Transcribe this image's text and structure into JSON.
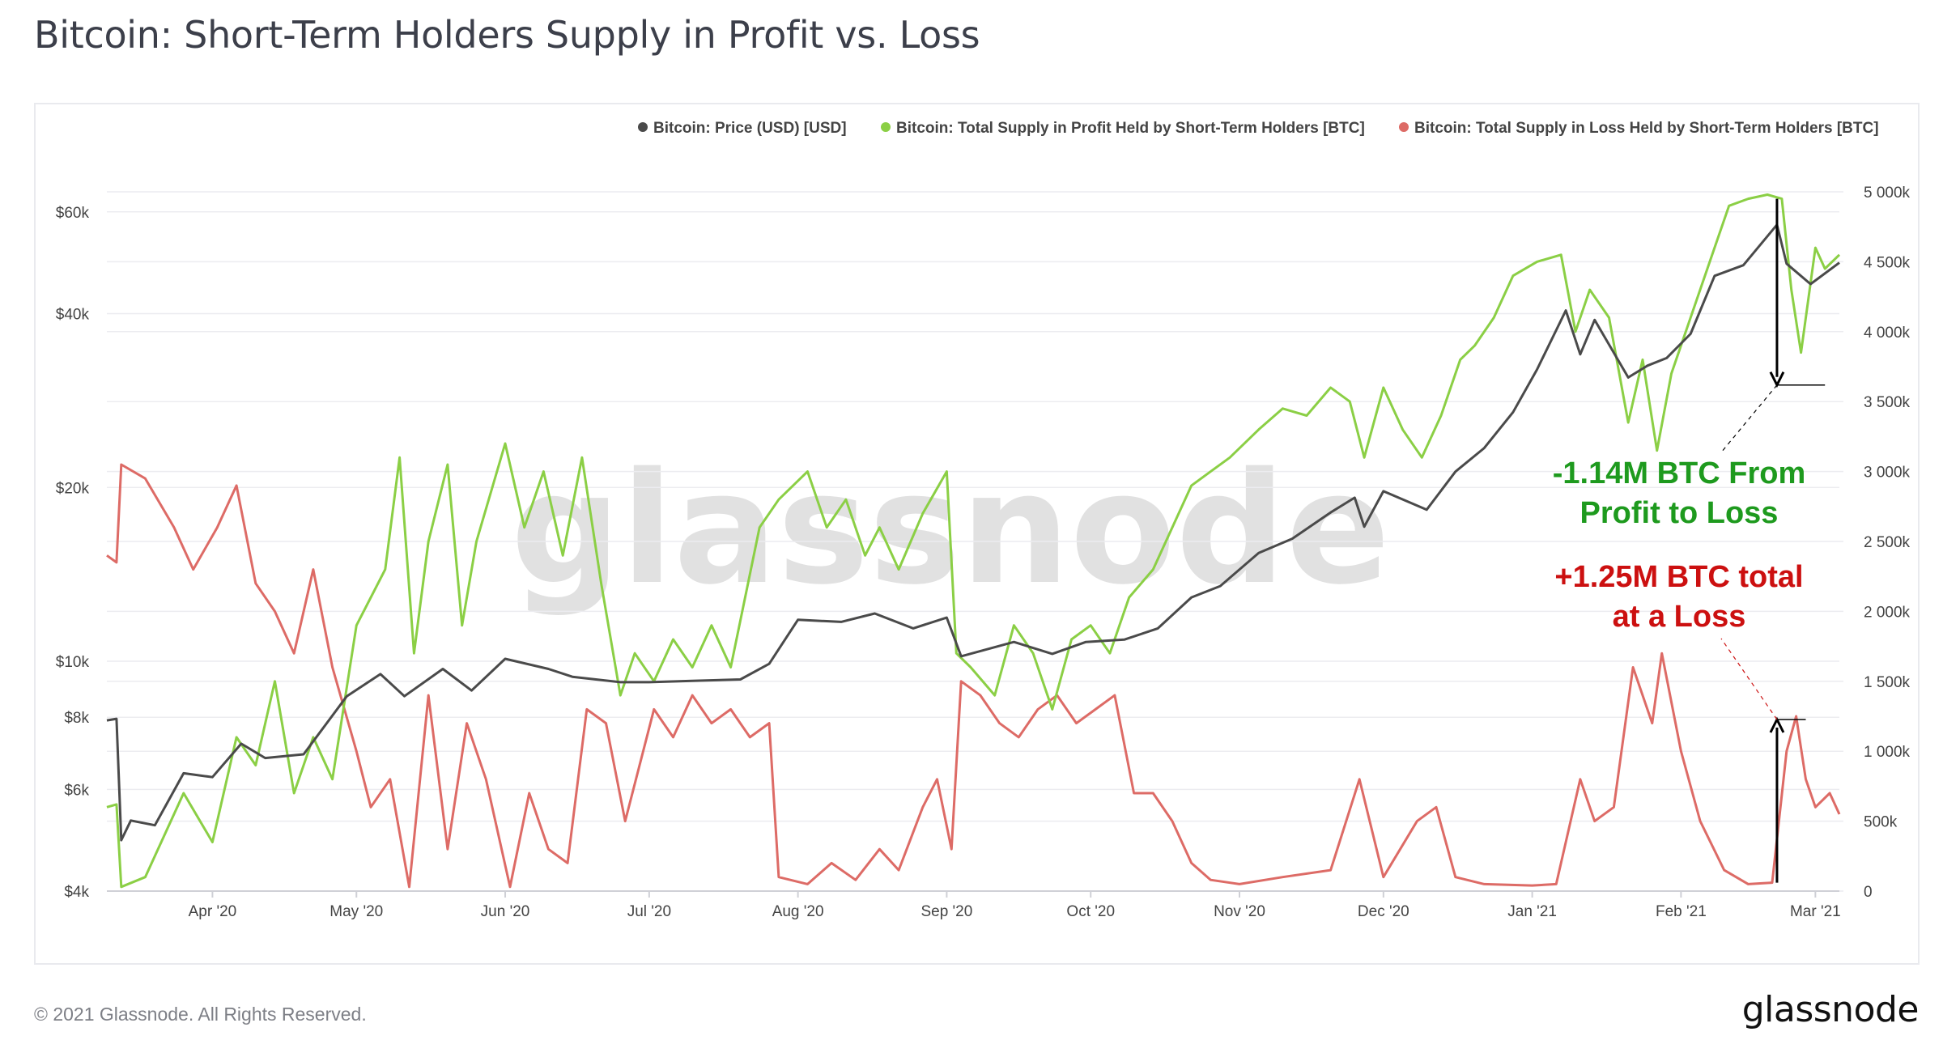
{
  "title": "Bitcoin: Short-Term Holders Supply in Profit vs. Loss",
  "footer": "© 2021 Glassnode. All Rights Reserved.",
  "brand": "glassnode",
  "watermark": "glassnode",
  "colors": {
    "price": "#4a4a4a",
    "profit": "#8bcf45",
    "loss": "#dd6b66",
    "annotation_green": "#1e9a1e",
    "annotation_red": "#cc1010",
    "grid": "#ececf0"
  },
  "chart_data": {
    "type": "line",
    "title": "Bitcoin: Short-Term Holders Supply in Profit vs. Loss",
    "x_ticks": [
      "Apr '20",
      "May '20",
      "Jun '20",
      "Jul '20",
      "Aug '20",
      "Sep '20",
      "Oct '20",
      "Nov '20",
      "Dec '20",
      "Jan '21",
      "Feb '21",
      "Mar '21"
    ],
    "x_range": [
      "2020-03-10",
      "2021-03-06"
    ],
    "y_left": {
      "scale": "log",
      "ticks": [
        "$4k",
        "$6k",
        "$8k",
        "$10k",
        "$20k",
        "$40k",
        "$60k"
      ],
      "tick_values": [
        4000,
        6000,
        8000,
        10000,
        20000,
        40000,
        60000
      ],
      "range": [
        4000,
        65000
      ]
    },
    "y_right": {
      "scale": "linear",
      "ticks": [
        "0",
        "500k",
        "1 000k",
        "1 500k",
        "2 000k",
        "2 500k",
        "3 000k",
        "3 500k",
        "4 000k",
        "4 500k",
        "5 000k"
      ],
      "range": [
        0,
        5000000
      ]
    },
    "legend_position": "top-right",
    "series": [
      {
        "name": "Bitcoin: Price (USD) [USD]",
        "axis": "left",
        "color": "#4a4a4a",
        "points": [
          [
            "2020-03-10",
            7900
          ],
          [
            "2020-03-12",
            7950
          ],
          [
            "2020-03-13",
            4900
          ],
          [
            "2020-03-15",
            5300
          ],
          [
            "2020-03-20",
            5200
          ],
          [
            "2020-03-26",
            6400
          ],
          [
            "2020-04-01",
            6300
          ],
          [
            "2020-04-07",
            7200
          ],
          [
            "2020-04-12",
            6800
          ],
          [
            "2020-04-20",
            6900
          ],
          [
            "2020-04-29",
            8700
          ],
          [
            "2020-05-06",
            9500
          ],
          [
            "2020-05-11",
            8700
          ],
          [
            "2020-05-19",
            9700
          ],
          [
            "2020-05-25",
            8900
          ],
          [
            "2020-06-01",
            10100
          ],
          [
            "2020-06-10",
            9700
          ],
          [
            "2020-06-15",
            9400
          ],
          [
            "2020-06-25",
            9200
          ],
          [
            "2020-07-01",
            9200
          ],
          [
            "2020-07-10",
            9250
          ],
          [
            "2020-07-20",
            9300
          ],
          [
            "2020-07-26",
            9900
          ],
          [
            "2020-08-01",
            11800
          ],
          [
            "2020-08-10",
            11700
          ],
          [
            "2020-08-17",
            12100
          ],
          [
            "2020-08-25",
            11400
          ],
          [
            "2020-09-01",
            11900
          ],
          [
            "2020-09-04",
            10200
          ],
          [
            "2020-09-15",
            10800
          ],
          [
            "2020-09-23",
            10300
          ],
          [
            "2020-09-30",
            10800
          ],
          [
            "2020-10-08",
            10900
          ],
          [
            "2020-10-15",
            11400
          ],
          [
            "2020-10-22",
            12900
          ],
          [
            "2020-10-28",
            13500
          ],
          [
            "2020-11-05",
            15400
          ],
          [
            "2020-11-12",
            16300
          ],
          [
            "2020-11-20",
            18100
          ],
          [
            "2020-11-25",
            19200
          ],
          [
            "2020-11-27",
            17100
          ],
          [
            "2020-12-01",
            19700
          ],
          [
            "2020-12-10",
            18300
          ],
          [
            "2020-12-16",
            21300
          ],
          [
            "2020-12-22",
            23400
          ],
          [
            "2020-12-28",
            27000
          ],
          [
            "2021-01-02",
            32000
          ],
          [
            "2021-01-08",
            40500
          ],
          [
            "2021-01-11",
            34000
          ],
          [
            "2021-01-14",
            39000
          ],
          [
            "2021-01-21",
            31000
          ],
          [
            "2021-01-25",
            32500
          ],
          [
            "2021-01-29",
            33500
          ],
          [
            "2021-02-03",
            36900
          ],
          [
            "2021-02-08",
            46500
          ],
          [
            "2021-02-14",
            48500
          ],
          [
            "2021-02-21",
            57000
          ],
          [
            "2021-02-23",
            48800
          ],
          [
            "2021-02-28",
            45000
          ],
          [
            "2021-03-06",
            49000
          ]
        ]
      },
      {
        "name": "Bitcoin: Total Supply in Profit Held by Short-Term Holders [BTC]",
        "axis": "right",
        "color": "#8bcf45",
        "points": [
          [
            "2020-03-10",
            600000
          ],
          [
            "2020-03-12",
            620000
          ],
          [
            "2020-03-13",
            30000
          ],
          [
            "2020-03-18",
            100000
          ],
          [
            "2020-03-22",
            400000
          ],
          [
            "2020-03-26",
            700000
          ],
          [
            "2020-04-01",
            350000
          ],
          [
            "2020-04-06",
            1100000
          ],
          [
            "2020-04-10",
            900000
          ],
          [
            "2020-04-14",
            1500000
          ],
          [
            "2020-04-18",
            700000
          ],
          [
            "2020-04-22",
            1100000
          ],
          [
            "2020-04-26",
            800000
          ],
          [
            "2020-05-01",
            1900000
          ],
          [
            "2020-05-07",
            2300000
          ],
          [
            "2020-05-10",
            3100000
          ],
          [
            "2020-05-13",
            1700000
          ],
          [
            "2020-05-16",
            2500000
          ],
          [
            "2020-05-20",
            3050000
          ],
          [
            "2020-05-23",
            1900000
          ],
          [
            "2020-05-26",
            2500000
          ],
          [
            "2020-06-01",
            3200000
          ],
          [
            "2020-06-05",
            2600000
          ],
          [
            "2020-06-09",
            3000000
          ],
          [
            "2020-06-13",
            2400000
          ],
          [
            "2020-06-17",
            3100000
          ],
          [
            "2020-06-21",
            2200000
          ],
          [
            "2020-06-25",
            1400000
          ],
          [
            "2020-06-28",
            1700000
          ],
          [
            "2020-07-02",
            1500000
          ],
          [
            "2020-07-06",
            1800000
          ],
          [
            "2020-07-10",
            1600000
          ],
          [
            "2020-07-14",
            1900000
          ],
          [
            "2020-07-18",
            1600000
          ],
          [
            "2020-07-24",
            2600000
          ],
          [
            "2020-07-28",
            2800000
          ],
          [
            "2020-08-03",
            3000000
          ],
          [
            "2020-08-07",
            2600000
          ],
          [
            "2020-08-11",
            2800000
          ],
          [
            "2020-08-15",
            2400000
          ],
          [
            "2020-08-18",
            2600000
          ],
          [
            "2020-08-22",
            2300000
          ],
          [
            "2020-08-27",
            2700000
          ],
          [
            "2020-09-01",
            3000000
          ],
          [
            "2020-09-03",
            1700000
          ],
          [
            "2020-09-06",
            1600000
          ],
          [
            "2020-09-11",
            1400000
          ],
          [
            "2020-09-15",
            1900000
          ],
          [
            "2020-09-19",
            1700000
          ],
          [
            "2020-09-23",
            1300000
          ],
          [
            "2020-09-27",
            1800000
          ],
          [
            "2020-10-01",
            1900000
          ],
          [
            "2020-10-05",
            1700000
          ],
          [
            "2020-10-09",
            2100000
          ],
          [
            "2020-10-14",
            2300000
          ],
          [
            "2020-10-18",
            2600000
          ],
          [
            "2020-10-22",
            2900000
          ],
          [
            "2020-10-26",
            3000000
          ],
          [
            "2020-10-30",
            3100000
          ],
          [
            "2020-11-05",
            3300000
          ],
          [
            "2020-11-10",
            3450000
          ],
          [
            "2020-11-15",
            3400000
          ],
          [
            "2020-11-20",
            3600000
          ],
          [
            "2020-11-24",
            3500000
          ],
          [
            "2020-11-27",
            3100000
          ],
          [
            "2020-12-01",
            3600000
          ],
          [
            "2020-12-05",
            3300000
          ],
          [
            "2020-12-09",
            3100000
          ],
          [
            "2020-12-13",
            3400000
          ],
          [
            "2020-12-17",
            3800000
          ],
          [
            "2020-12-20",
            3900000
          ],
          [
            "2020-12-24",
            4100000
          ],
          [
            "2020-12-28",
            4400000
          ],
          [
            "2021-01-02",
            4500000
          ],
          [
            "2021-01-07",
            4550000
          ],
          [
            "2021-01-10",
            4000000
          ],
          [
            "2021-01-13",
            4300000
          ],
          [
            "2021-01-17",
            4100000
          ],
          [
            "2021-01-21",
            3350000
          ],
          [
            "2021-01-24",
            3800000
          ],
          [
            "2021-01-27",
            3150000
          ],
          [
            "2021-01-30",
            3700000
          ],
          [
            "2021-02-03",
            4100000
          ],
          [
            "2021-02-07",
            4500000
          ],
          [
            "2021-02-11",
            4900000
          ],
          [
            "2021-02-15",
            4950000
          ],
          [
            "2021-02-19",
            4980000
          ],
          [
            "2021-02-22",
            4950000
          ],
          [
            "2021-02-24",
            4300000
          ],
          [
            "2021-02-26",
            3850000
          ],
          [
            "2021-03-01",
            4600000
          ],
          [
            "2021-03-03",
            4450000
          ],
          [
            "2021-03-06",
            4550000
          ]
        ]
      },
      {
        "name": "Bitcoin: Total Supply in Loss Held by Short-Term Holders [BTC]",
        "axis": "right",
        "color": "#dd6b66",
        "points": [
          [
            "2020-03-10",
            2400000
          ],
          [
            "2020-03-12",
            2350000
          ],
          [
            "2020-03-13",
            3050000
          ],
          [
            "2020-03-18",
            2950000
          ],
          [
            "2020-03-24",
            2600000
          ],
          [
            "2020-03-28",
            2300000
          ],
          [
            "2020-04-02",
            2600000
          ],
          [
            "2020-04-06",
            2900000
          ],
          [
            "2020-04-10",
            2200000
          ],
          [
            "2020-04-14",
            2000000
          ],
          [
            "2020-04-18",
            1700000
          ],
          [
            "2020-04-22",
            2300000
          ],
          [
            "2020-04-26",
            1600000
          ],
          [
            "2020-05-01",
            1000000
          ],
          [
            "2020-05-04",
            600000
          ],
          [
            "2020-05-08",
            800000
          ],
          [
            "2020-05-12",
            30000
          ],
          [
            "2020-05-16",
            1400000
          ],
          [
            "2020-05-20",
            300000
          ],
          [
            "2020-05-24",
            1200000
          ],
          [
            "2020-05-28",
            800000
          ],
          [
            "2020-06-02",
            30000
          ],
          [
            "2020-06-06",
            700000
          ],
          [
            "2020-06-10",
            300000
          ],
          [
            "2020-06-14",
            200000
          ],
          [
            "2020-06-18",
            1300000
          ],
          [
            "2020-06-22",
            1200000
          ],
          [
            "2020-06-26",
            500000
          ],
          [
            "2020-07-02",
            1300000
          ],
          [
            "2020-07-06",
            1100000
          ],
          [
            "2020-07-10",
            1400000
          ],
          [
            "2020-07-14",
            1200000
          ],
          [
            "2020-07-18",
            1300000
          ],
          [
            "2020-07-22",
            1100000
          ],
          [
            "2020-07-26",
            1200000
          ],
          [
            "2020-07-28",
            100000
          ],
          [
            "2020-08-03",
            50000
          ],
          [
            "2020-08-08",
            200000
          ],
          [
            "2020-08-13",
            80000
          ],
          [
            "2020-08-18",
            300000
          ],
          [
            "2020-08-22",
            150000
          ],
          [
            "2020-08-27",
            600000
          ],
          [
            "2020-08-30",
            800000
          ],
          [
            "2020-09-02",
            300000
          ],
          [
            "2020-09-04",
            1500000
          ],
          [
            "2020-09-08",
            1400000
          ],
          [
            "2020-09-12",
            1200000
          ],
          [
            "2020-09-16",
            1100000
          ],
          [
            "2020-09-20",
            1300000
          ],
          [
            "2020-09-24",
            1400000
          ],
          [
            "2020-09-28",
            1200000
          ],
          [
            "2020-10-02",
            1300000
          ],
          [
            "2020-10-06",
            1400000
          ],
          [
            "2020-10-10",
            700000
          ],
          [
            "2020-10-14",
            700000
          ],
          [
            "2020-10-18",
            500000
          ],
          [
            "2020-10-22",
            200000
          ],
          [
            "2020-10-26",
            80000
          ],
          [
            "2020-11-01",
            50000
          ],
          [
            "2020-11-10",
            100000
          ],
          [
            "2020-11-20",
            150000
          ],
          [
            "2020-11-26",
            800000
          ],
          [
            "2020-12-01",
            100000
          ],
          [
            "2020-12-08",
            500000
          ],
          [
            "2020-12-12",
            600000
          ],
          [
            "2020-12-16",
            100000
          ],
          [
            "2020-12-22",
            50000
          ],
          [
            "2021-01-01",
            40000
          ],
          [
            "2021-01-06",
            50000
          ],
          [
            "2021-01-11",
            800000
          ],
          [
            "2021-01-14",
            500000
          ],
          [
            "2021-01-18",
            600000
          ],
          [
            "2021-01-22",
            1600000
          ],
          [
            "2021-01-26",
            1200000
          ],
          [
            "2021-01-28",
            1700000
          ],
          [
            "2021-02-01",
            1000000
          ],
          [
            "2021-02-05",
            500000
          ],
          [
            "2021-02-10",
            150000
          ],
          [
            "2021-02-15",
            50000
          ],
          [
            "2021-02-20",
            60000
          ],
          [
            "2021-02-23",
            1000000
          ],
          [
            "2021-02-25",
            1250000
          ],
          [
            "2021-02-27",
            800000
          ],
          [
            "2021-03-01",
            600000
          ],
          [
            "2021-03-04",
            700000
          ],
          [
            "2021-03-06",
            550000
          ]
        ]
      }
    ],
    "annotations": [
      {
        "lines": [
          "-1.14M BTC From",
          "Profit to Loss"
        ],
        "color": "#1e9a1e"
      },
      {
        "lines": [
          "+1.25M BTC total",
          "at a Loss"
        ],
        "color": "#cc1010"
      }
    ]
  }
}
